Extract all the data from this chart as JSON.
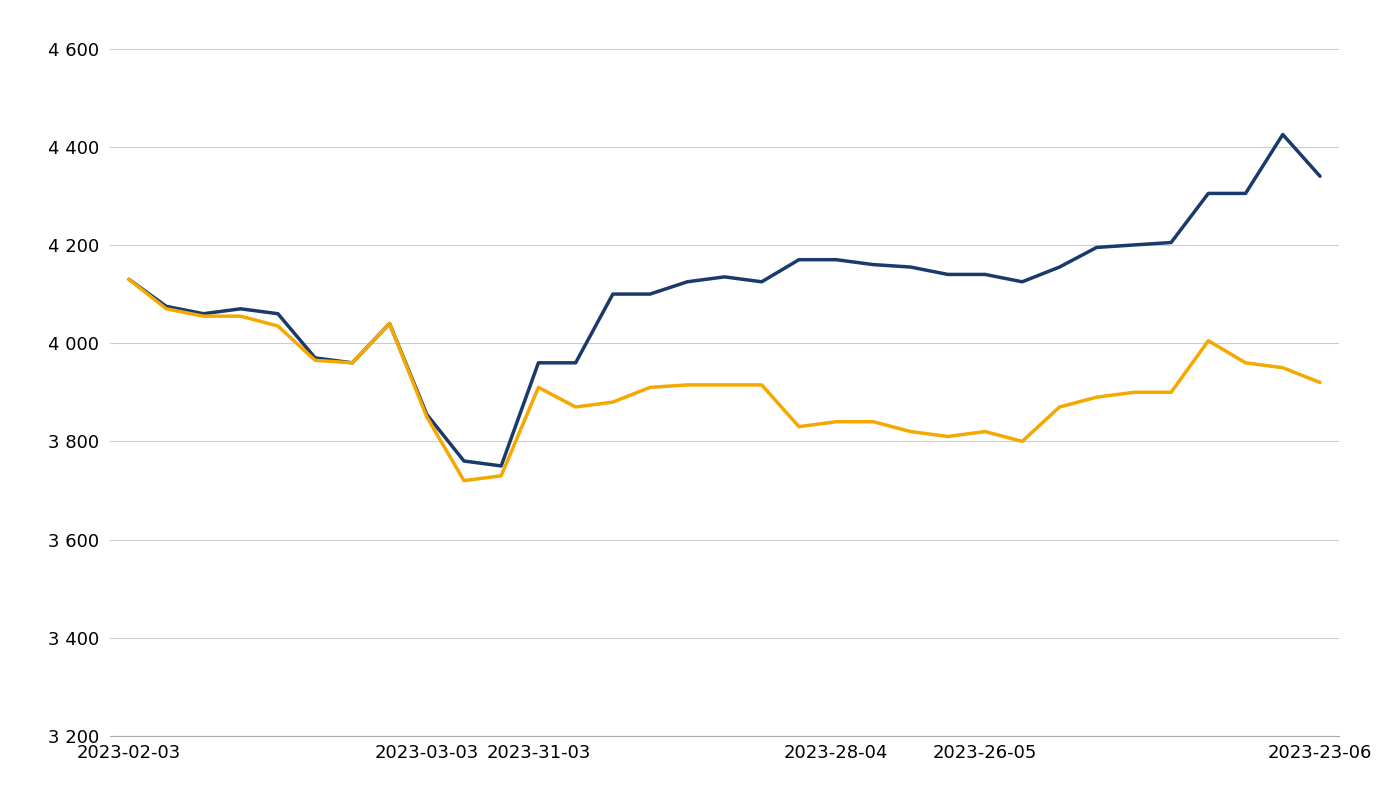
{
  "sp500": [
    4130,
    4075,
    4060,
    4070,
    4060,
    3970,
    3960,
    4040,
    3855,
    3760,
    3750,
    3960,
    3960,
    4100,
    4100,
    4125,
    4135,
    4125,
    4170,
    4170,
    4160,
    4155,
    4140,
    4140,
    4125,
    4155,
    4195,
    4200,
    4205,
    4305,
    4305,
    4425,
    4340
  ],
  "sp500_equal": [
    4130,
    4070,
    4055,
    4055,
    4035,
    3965,
    3960,
    4040,
    3850,
    3720,
    3730,
    3910,
    3870,
    3880,
    3910,
    3915,
    3915,
    3915,
    3830,
    3840,
    3840,
    3820,
    3810,
    3820,
    3800,
    3870,
    3890,
    3900,
    3900,
    4005,
    3960,
    3950,
    3920
  ],
  "x_tick_positions": [
    0,
    8,
    11,
    19,
    23,
    32
  ],
  "x_labels": [
    "2023-02-03",
    "2023-03-03",
    "2023-31-03",
    "2023-28-04",
    "2023-26-05",
    "2023-23-06"
  ],
  "ylim": [
    3200,
    4650
  ],
  "yticks": [
    3200,
    3400,
    3600,
    3800,
    4000,
    4200,
    4400,
    4600
  ],
  "color_sp500": "#1a3a6b",
  "color_equal": "#f5a800",
  "linewidth": 2.5,
  "background_color": "#ffffff",
  "grid_color": "#cccccc"
}
